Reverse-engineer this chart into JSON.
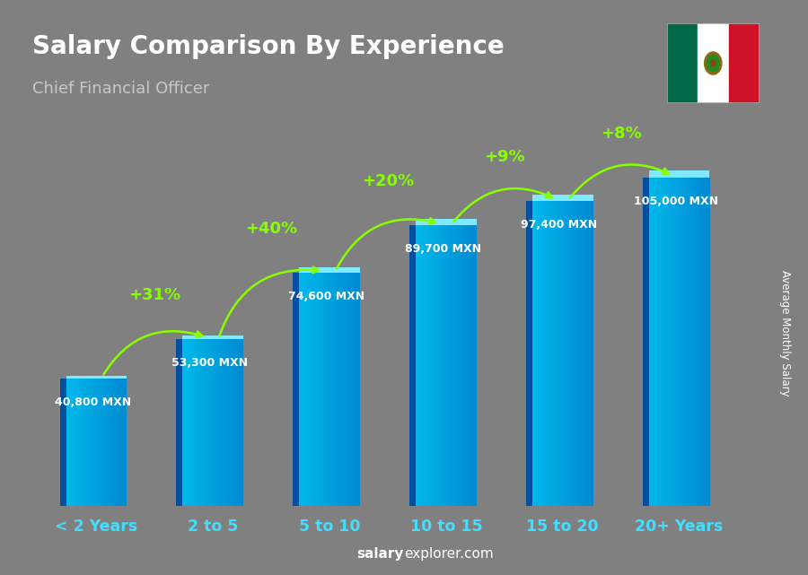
{
  "title": "Salary Comparison By Experience",
  "subtitle": "Chief Financial Officer",
  "categories": [
    "< 2 Years",
    "2 to 5",
    "5 to 10",
    "10 to 15",
    "15 to 20",
    "20+ Years"
  ],
  "values": [
    40800,
    53300,
    74600,
    89700,
    97400,
    105000
  ],
  "value_labels": [
    "40,800 MXN",
    "53,300 MXN",
    "74,600 MXN",
    "89,700 MXN",
    "97,400 MXN",
    "105,000 MXN"
  ],
  "pct_changes": [
    "+31%",
    "+40%",
    "+20%",
    "+9%",
    "+8%"
  ],
  "bg_color": "#808080",
  "title_color": "#ffffff",
  "subtitle_color": "#cccccc",
  "pct_color": "#88ff00",
  "xlabel_color": "#44ddff",
  "watermark_salary": "salary",
  "watermark_explorer": "explorer",
  "watermark_com": ".com",
  "ylabel_text": "Average Monthly Salary",
  "bar_cyan": "#00c8f0",
  "bar_dark_blue": "#0060c0",
  "bar_side_color": "#0050a0",
  "bar_top_color": "#80e8ff"
}
